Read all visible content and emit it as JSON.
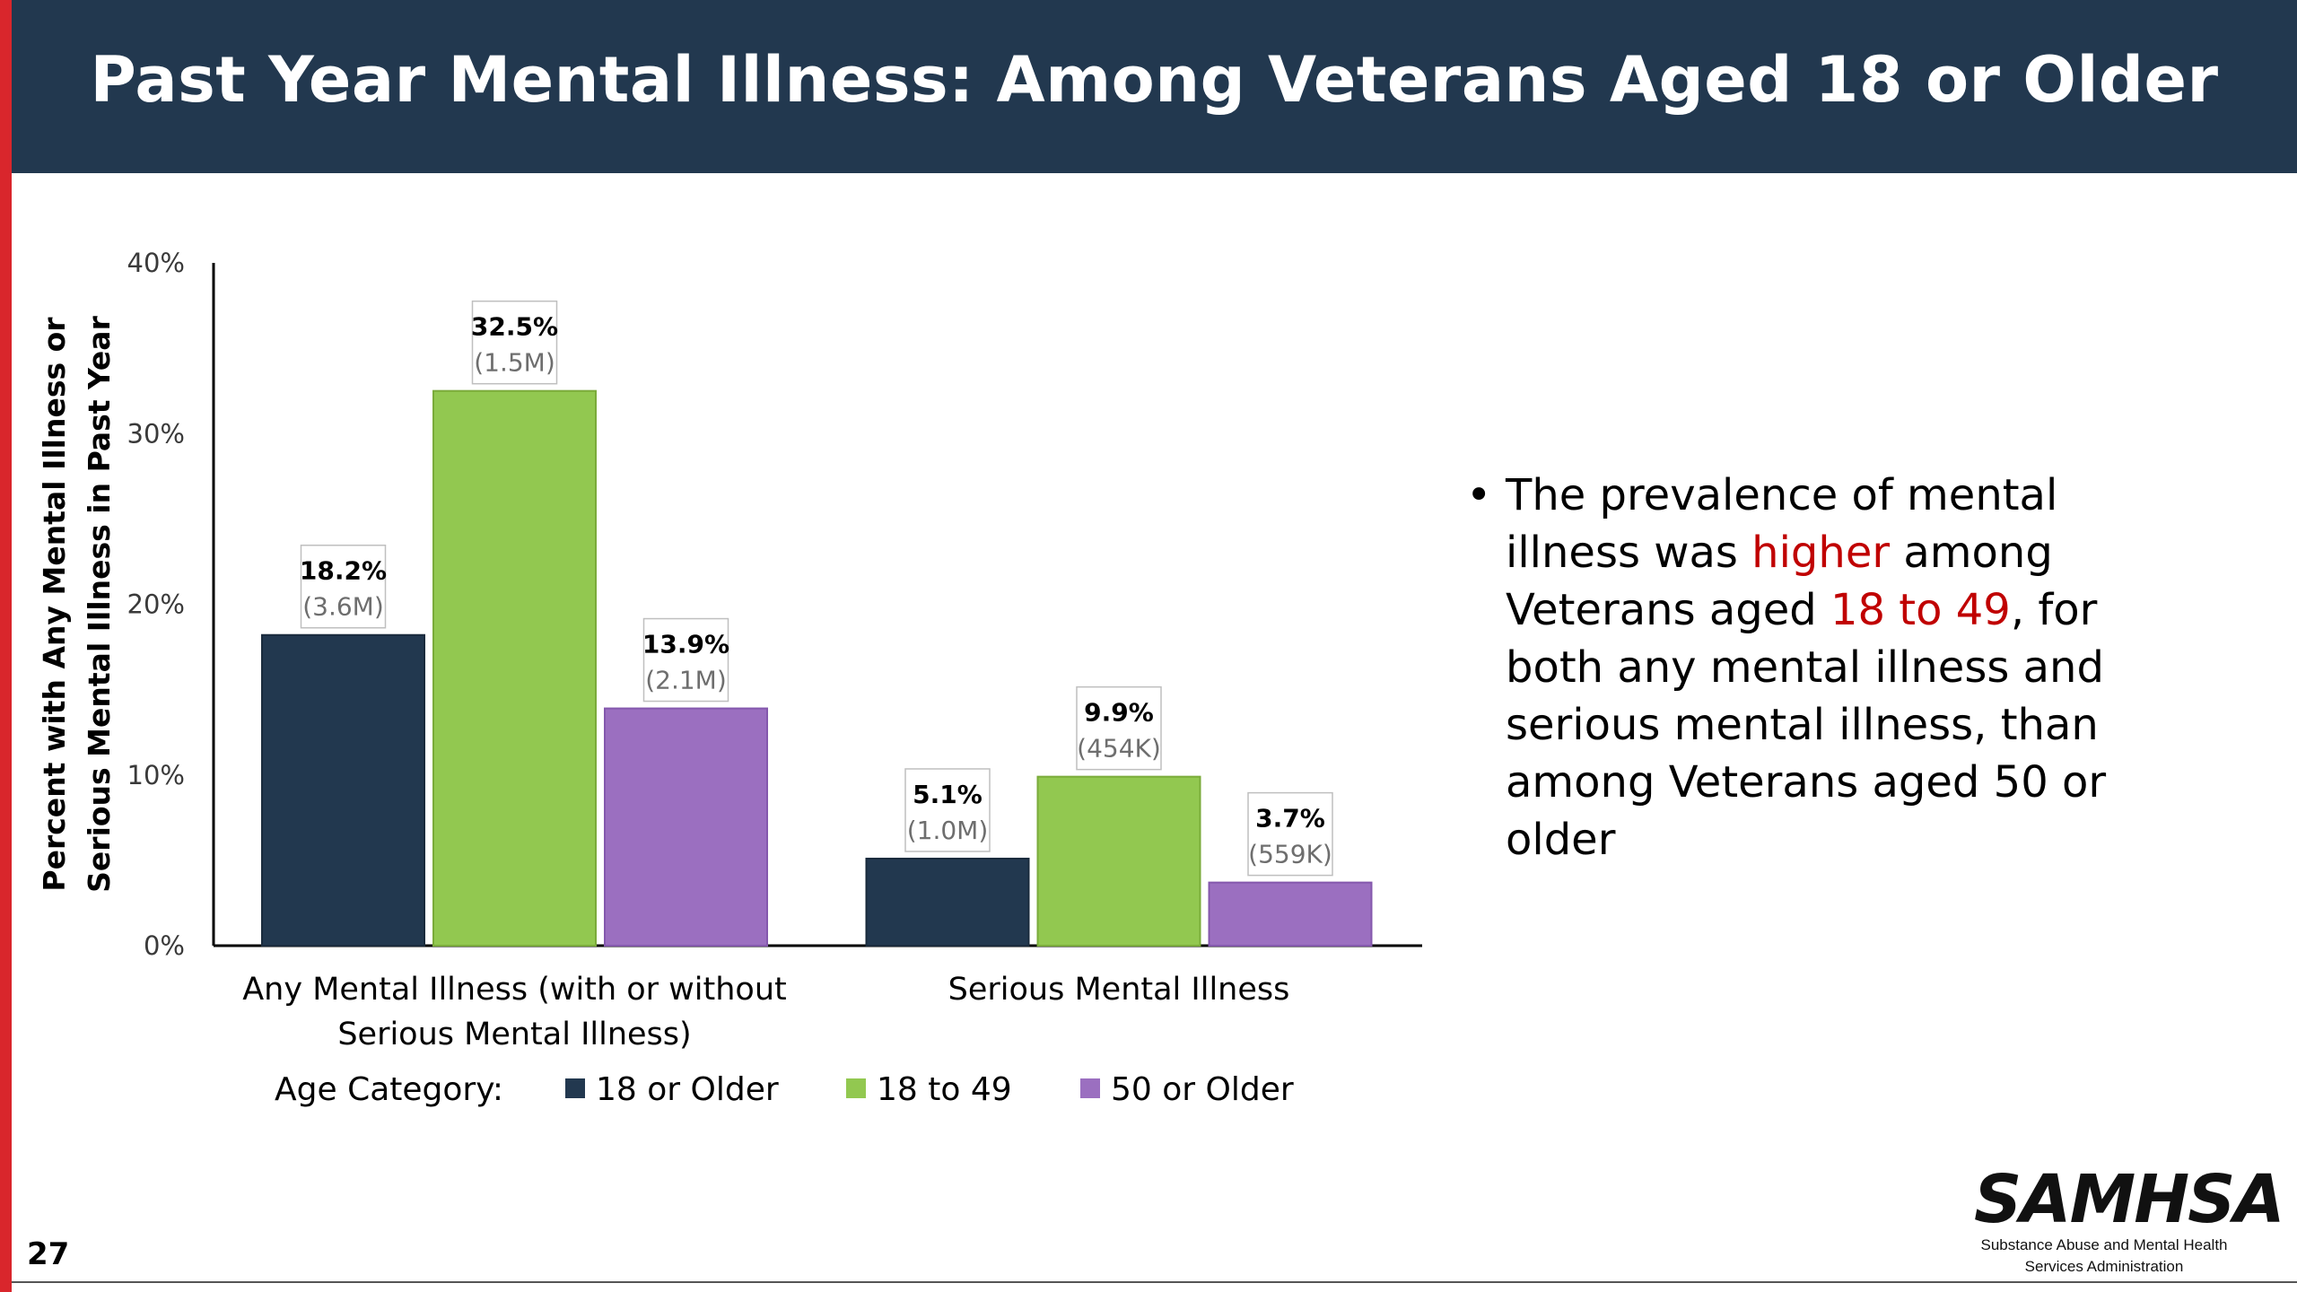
{
  "header": {
    "title": "Past Year Mental Illness: Among Veterans Aged 18 or Older"
  },
  "chart_data": {
    "type": "bar",
    "categories": [
      "Any Mental Illness (with or without Serious Mental Illness)",
      "Serious Mental Illness"
    ],
    "category_lines": [
      [
        "Any Mental Illness (with or without",
        "Serious Mental Illness)"
      ],
      [
        "Serious Mental Illness"
      ]
    ],
    "series": [
      {
        "name": "18 or Older",
        "color": "#22384f",
        "values": [
          18.2,
          5.1
        ],
        "counts": [
          "(3.6M)",
          "(1.0M)"
        ]
      },
      {
        "name": "18 to 49",
        "color": "#92c850",
        "values": [
          32.5,
          9.9
        ],
        "counts": [
          "(1.5M)",
          "(454K)"
        ]
      },
      {
        "name": "50 or Older",
        "color": "#9b6fc0",
        "values": [
          13.9,
          3.7
        ],
        "counts": [
          "(2.1M)",
          "(559K)"
        ]
      }
    ],
    "ylabel": [
      "Percent with Any Mental Illness or",
      "Serious Mental Illness in Past Year"
    ],
    "yticks": [
      "0%",
      "10%",
      "20%",
      "30%",
      "40%"
    ],
    "ylim": [
      0,
      40
    ],
    "legend_title": "Age Category:",
    "legend_position": "bottom"
  },
  "bullet": {
    "lines": [
      [
        "The prevalence of mental"
      ],
      [
        "illness was ",
        "higher",
        " among"
      ],
      [
        "Veterans aged ",
        "18 to 49",
        ", for"
      ],
      [
        "both any mental illness and"
      ],
      [
        "serious mental illness, than"
      ],
      [
        "among Veterans aged 50 or"
      ],
      [
        "older"
      ]
    ],
    "highlight_color": "#c00000"
  },
  "footer": {
    "page_number": "27",
    "logo_word": "SAMHSA",
    "logo_sub_1": "Substance Abuse and Mental Health",
    "logo_sub_2": "Services Administration"
  }
}
